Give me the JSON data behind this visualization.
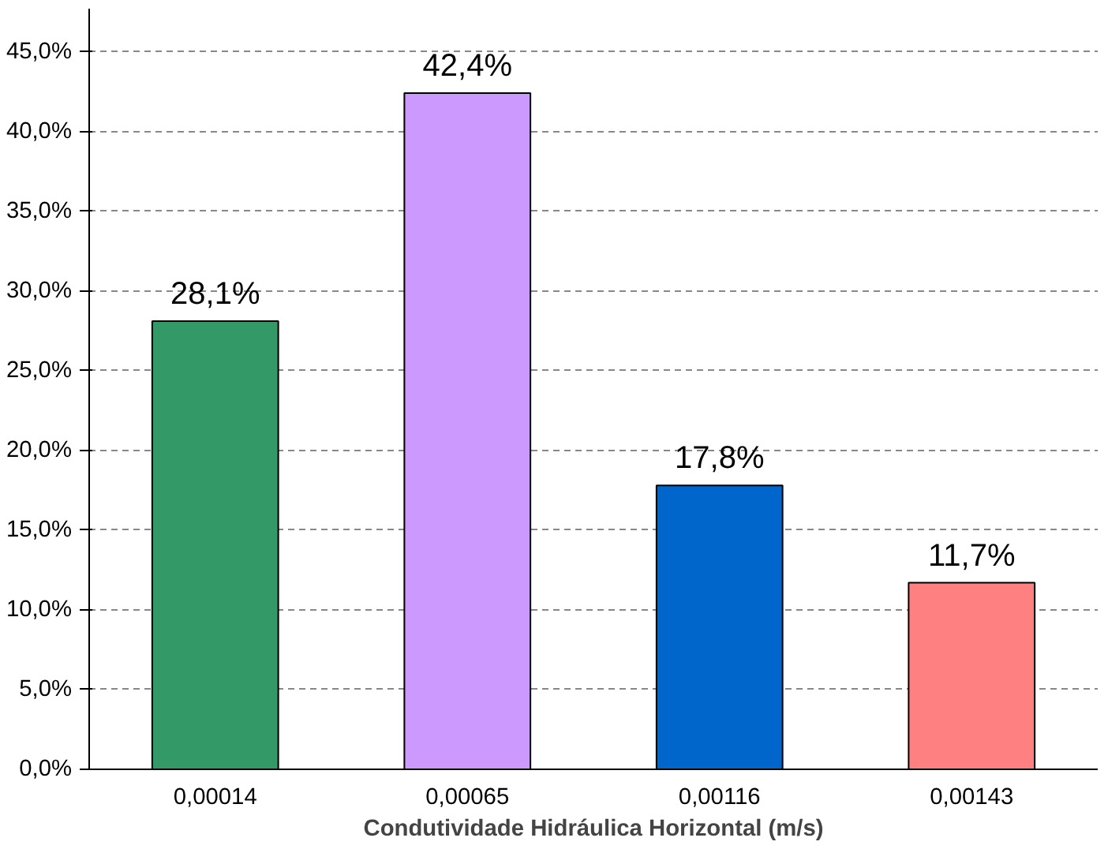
{
  "chart_data": {
    "type": "bar",
    "xlabel": "Condutividade Hidráulica Horizontal (m/s)",
    "categories": [
      "0,00014",
      "0,00065",
      "0,00116",
      "0,00143"
    ],
    "values": [
      28.1,
      42.4,
      17.8,
      11.7
    ],
    "colors": [
      "#339966",
      "#cc99ff",
      "#0066cc",
      "#ff8080"
    ],
    "value_labels": [
      "28,1%",
      "42,4%",
      "17,8%",
      "11,7%"
    ],
    "ylim": [
      0,
      45
    ],
    "yticks": [
      {
        "value": 0,
        "label": "0,0%"
      },
      {
        "value": 5,
        "label": "5,0%"
      },
      {
        "value": 10,
        "label": "10,0%"
      },
      {
        "value": 15,
        "label": "15,0%"
      },
      {
        "value": 20,
        "label": "20,0%"
      },
      {
        "value": 25,
        "label": "25,0%"
      },
      {
        "value": 30,
        "label": "30,0%"
      },
      {
        "value": 35,
        "label": "35,0%"
      },
      {
        "value": 40,
        "label": "40,0%"
      },
      {
        "value": 45,
        "label": "45,0%"
      }
    ],
    "grid": "y"
  }
}
